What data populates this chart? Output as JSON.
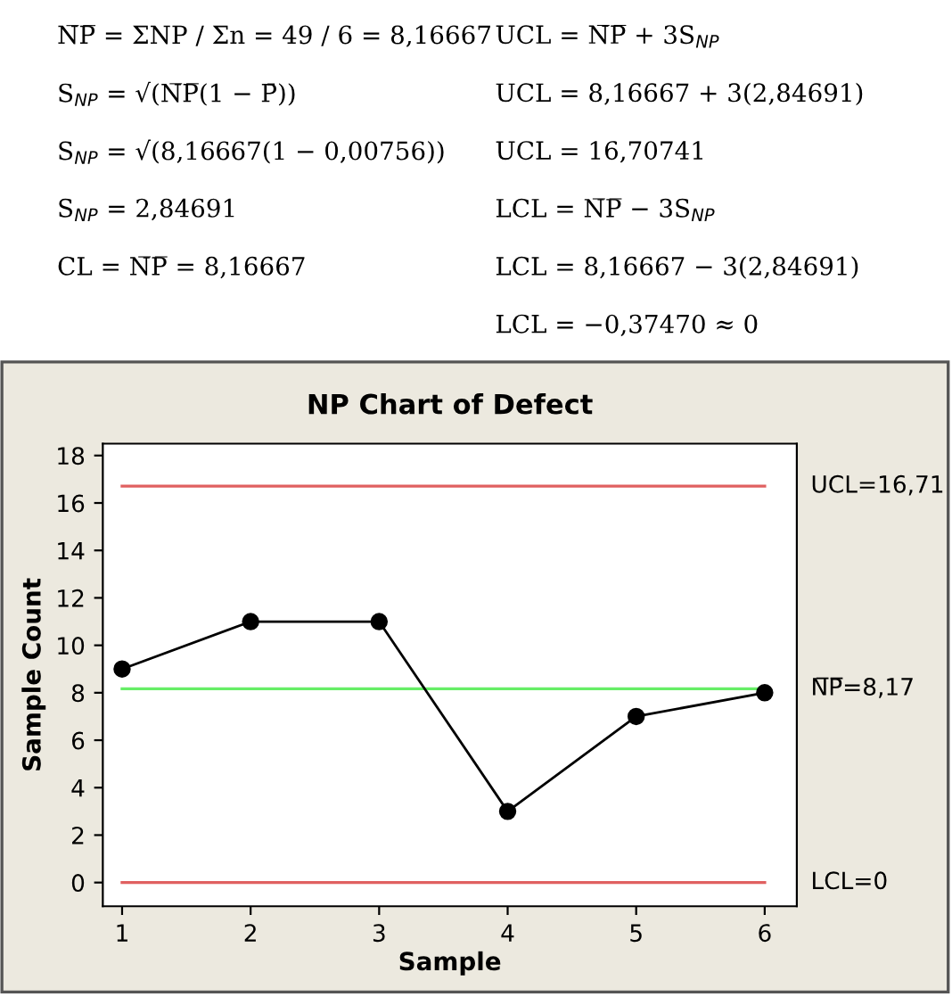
{
  "chart_data": {
    "type": "line",
    "title": "NP Chart of Defect",
    "xlabel": "Sample",
    "ylabel": "Sample Count",
    "x": [
      1,
      2,
      3,
      4,
      5,
      6
    ],
    "series": [
      {
        "color": "#000000",
        "values": [
          9,
          11,
          11,
          3,
          7,
          8
        ]
      }
    ],
    "marker": "circle",
    "line_style": "solid",
    "grid": false,
    "legend": false,
    "xlim": [
      0.85,
      6.25
    ],
    "ylim": [
      -1,
      18.5
    ],
    "xticks": [
      1,
      2,
      3,
      4,
      5,
      6
    ],
    "yticks": [
      0,
      2,
      4,
      6,
      8,
      10,
      12,
      14,
      16,
      18
    ],
    "ref_lines": [
      {
        "axis": "y",
        "value": 16.71,
        "label": "UCL=16,71",
        "color": "#e06060",
        "line_style": "solid"
      },
      {
        "axis": "y",
        "value": 8.17,
        "label": "N̅P̅=8,17",
        "color": "#66ee66",
        "line_style": "solid"
      },
      {
        "axis": "y",
        "value": 0,
        "label": "LCL=0",
        "color": "#e06060",
        "line_style": "solid"
      }
    ],
    "annotations": [
      "N̅P̅ = ΣNP / Σn = 49 / 6 = 8,16667",
      "S$_{NP}$ = √(N̅P̅(1 − P̄))",
      "S$_{NP}$ = √(8,16667(1 − 0,00756))",
      "S$_{NP}$ = 2,84691",
      "CL = N̅P̅ = 8,16667",
      "UCL = N̅P̅ + 3S$_{NP}$",
      "UCL = 8,16667 + 3(2,84691)",
      "UCL = 16,70741",
      "LCL = N̅P̅ − 3S$_{NP}$",
      "LCL = 8,16667 − 3(2,84691)",
      "LCL = −0,37470 ≈ 0"
    ]
  }
}
